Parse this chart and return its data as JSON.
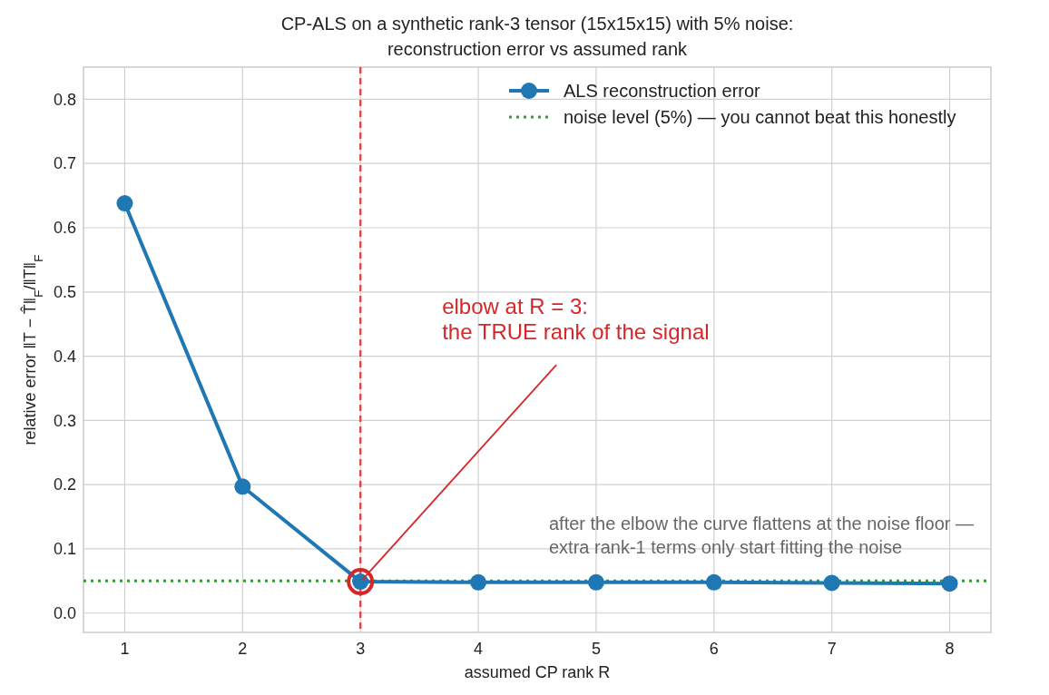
{
  "chart_data": {
    "type": "line",
    "title": "CP-ALS on a synthetic rank-3 tensor (15x15x15) with 5% noise:\nreconstruction error vs assumed rank",
    "xlabel": "assumed CP rank R",
    "ylabel": "relative error  ‖T − T̂‖$_{F}$/‖T‖$_{F}$",
    "x": [
      1,
      2,
      3,
      4,
      5,
      6,
      7,
      8
    ],
    "series": [
      {
        "name": "ALS reconstruction error",
        "color": "#1f77b4",
        "values": [
          0.638,
          0.197,
          0.049,
          0.048,
          0.048,
          0.048,
          0.047,
          0.046
        ]
      }
    ],
    "xlim": [
      0.65,
      8.35
    ],
    "xticks": [
      1,
      2,
      3,
      4,
      5,
      6,
      7,
      8
    ],
    "ylim": [
      -0.03,
      0.85
    ],
    "yticks": [
      {
        "value": 0,
        "label": "0.0"
      },
      0.1,
      0.2,
      0.3,
      0.4,
      0.5,
      0.6,
      0.7,
      0.8
    ],
    "ref_lines": [
      {
        "axis": "y",
        "value": 0.05,
        "label": "noise level (5%) — you cannot beat this honestly",
        "color": "#2ca02c",
        "line_style": "dotted"
      },
      {
        "axis": "x",
        "value": 3,
        "color": "#d62728",
        "line_style": "dashed"
      }
    ],
    "annotations": [
      {
        "text": "elbow at R = 3:\nthe TRUE rank of the signal",
        "x": 3,
        "y": 0.049
      },
      "after the elbow the curve flattens at the noise floor —\nextra rank-1 terms only start fitting the noise"
    ],
    "grid": true,
    "legend": "top right",
    "marker": "circle",
    "line_style": "solid"
  }
}
